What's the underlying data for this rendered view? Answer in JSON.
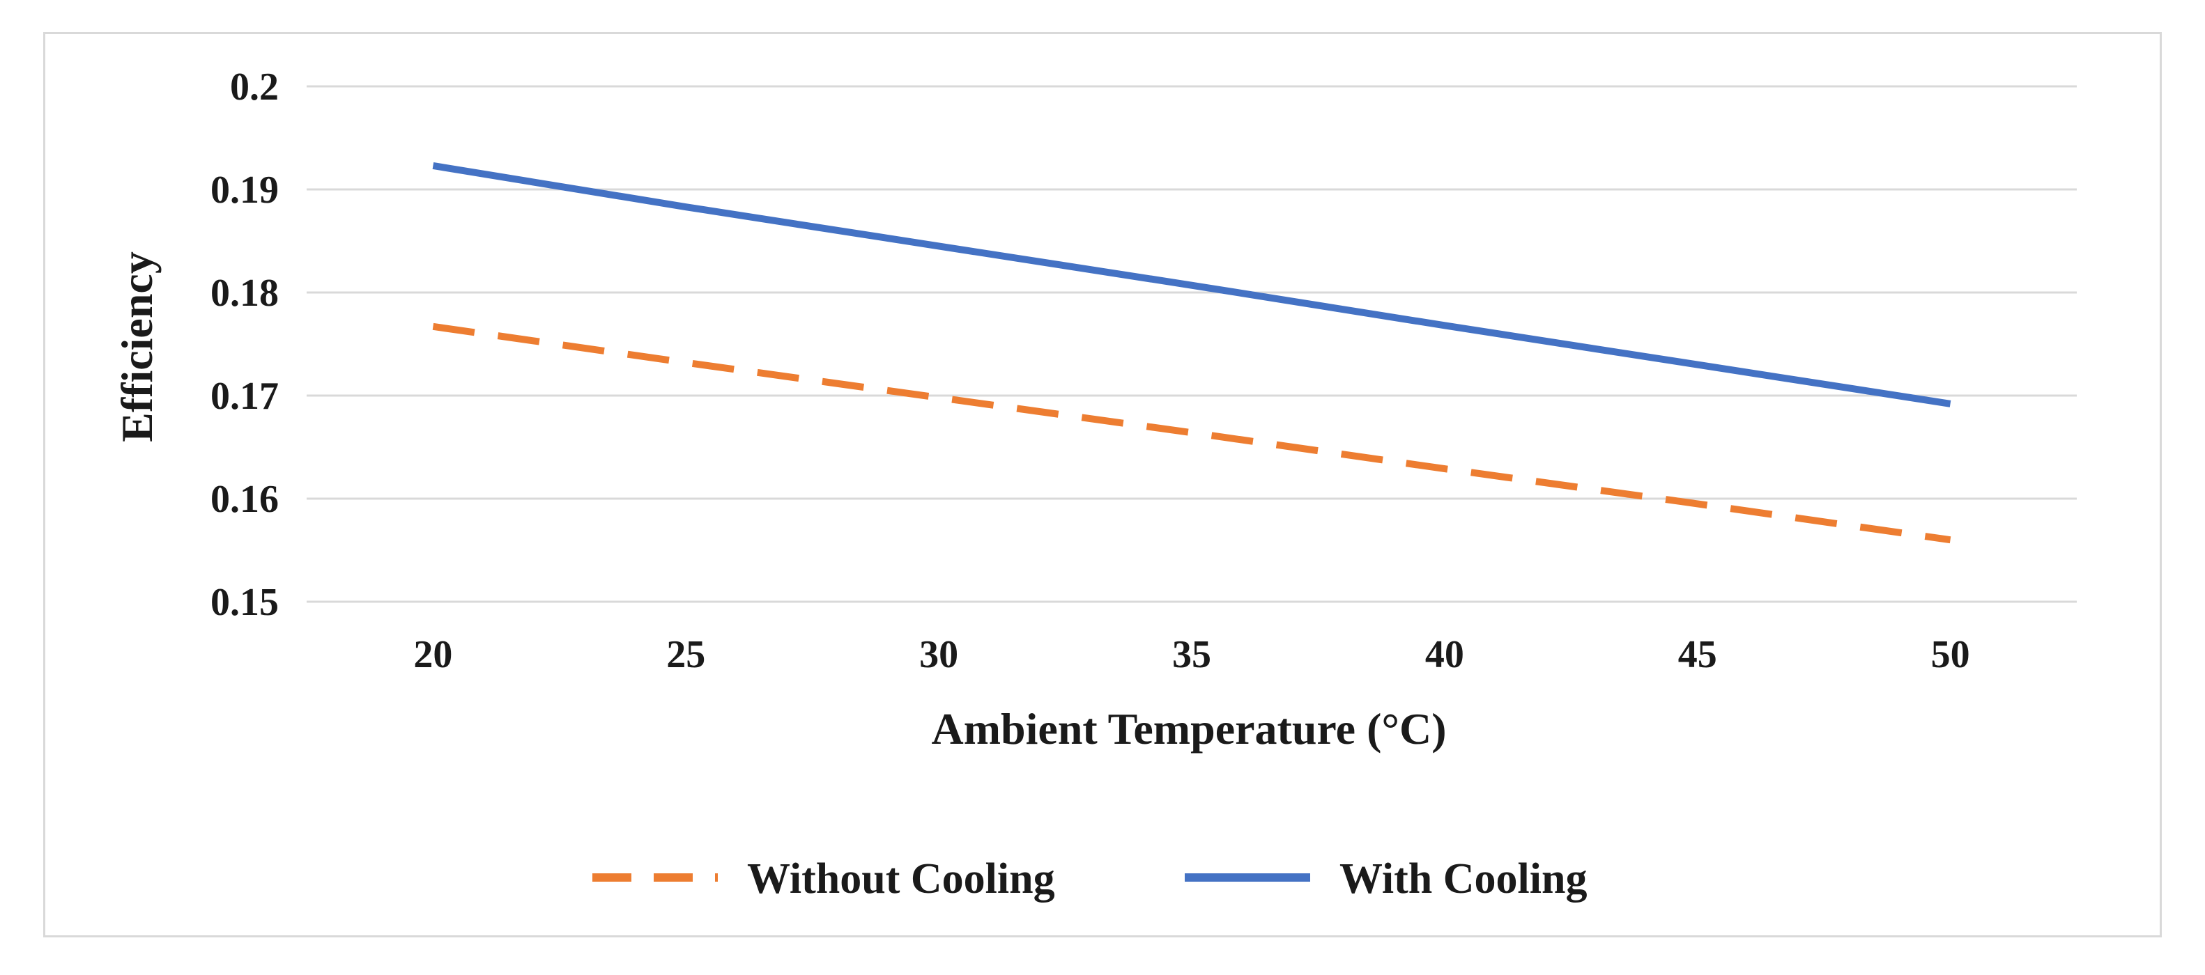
{
  "chart_data": {
    "type": "line",
    "title": "",
    "xlabel": "Ambient Temperature (°C)",
    "ylabel": "Efficiency",
    "x": [
      20,
      25,
      30,
      35,
      40,
      45,
      50
    ],
    "x_tick_labels": [
      "20",
      "25",
      "30",
      "35",
      "40",
      "45",
      "50"
    ],
    "y_tick_labels": [
      "0.2",
      "0.19",
      "0.18",
      "0.17",
      "0.16",
      "0.15"
    ],
    "xlim": [
      17.5,
      52.5
    ],
    "ylim": [
      0.15,
      0.2
    ],
    "grid": true,
    "legend_position": "bottom",
    "series": [
      {
        "name": "Without Cooling",
        "values": [
          0.1767,
          0.1732,
          0.1698,
          0.1664,
          0.1629,
          0.1595,
          0.156
        ],
        "color": "#ed7d31",
        "style": "dashed"
      },
      {
        "name": "With Cooling",
        "values": [
          0.1923,
          0.1883,
          0.1845,
          0.1807,
          0.1768,
          0.173,
          0.1692
        ],
        "color": "#4472c4",
        "style": "solid"
      }
    ]
  }
}
